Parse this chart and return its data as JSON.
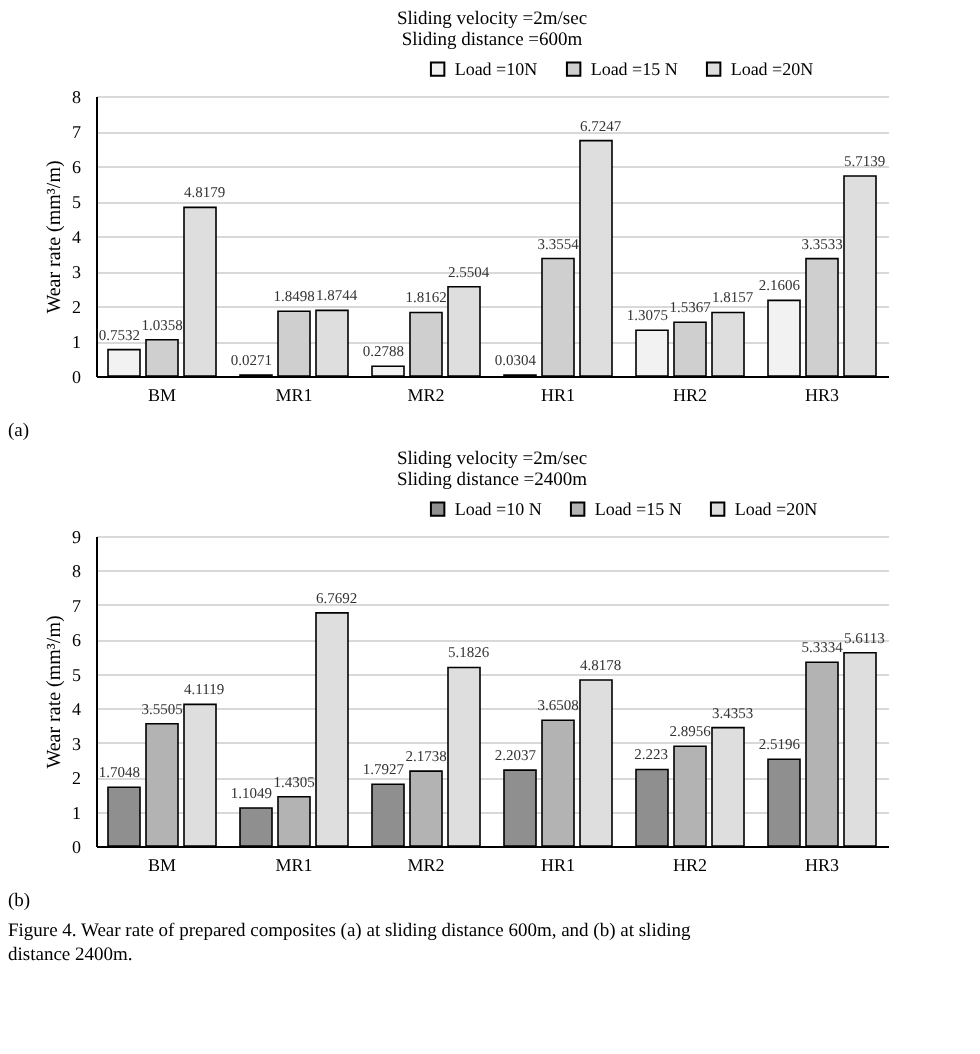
{
  "chart_data": [
    {
      "type": "bar",
      "title": "Sliding velocity =2m/sec",
      "subtitle": "Sliding distance =600m",
      "ylabel": "Wear rate (mm³/m)",
      "categories": [
        "BM",
        "MR1",
        "MR2",
        "HR1",
        "HR2",
        "HR3"
      ],
      "series": [
        {
          "name": "Load =10N",
          "color": "#f2f2f2",
          "values": [
            0.7532,
            0.0271,
            0.2788,
            0.0304,
            1.3075,
            2.1606
          ]
        },
        {
          "name": "Load =15 N",
          "color": "#cfcfcf",
          "values": [
            1.0358,
            1.8498,
            1.8162,
            3.3554,
            1.5367,
            3.3533
          ]
        },
        {
          "name": "Load =20N",
          "color": "#dedede",
          "values": [
            4.8179,
            1.8744,
            2.5504,
            6.7247,
            1.8157,
            5.7139
          ]
        }
      ],
      "ylim": [
        0,
        8
      ],
      "yticks": [
        0,
        1,
        2,
        3,
        4,
        5,
        6,
        7,
        8
      ],
      "grid": "y",
      "legend": "top",
      "data_labels": true,
      "annotations": [
        "(a)"
      ]
    },
    {
      "type": "bar",
      "title": "Sliding velocity =2m/sec",
      "subtitle": "Sliding distance =2400m",
      "ylabel": "Wear rate (mm³/m)",
      "categories": [
        "BM",
        "MR1",
        "MR2",
        "HR1",
        "HR2",
        "HR3"
      ],
      "series": [
        {
          "name": "Load =10 N",
          "color": "#8f8f8f",
          "values": [
            1.7048,
            1.1049,
            1.7927,
            2.2037,
            2.223,
            2.5196
          ]
        },
        {
          "name": "Load =15 N",
          "color": "#b3b3b3",
          "values": [
            3.5505,
            1.4305,
            2.1738,
            3.6508,
            2.8956,
            5.3334
          ]
        },
        {
          "name": "Load =20N",
          "color": "#dedede",
          "values": [
            4.1119,
            6.7692,
            5.1826,
            4.8178,
            3.4353,
            5.6113
          ]
        }
      ],
      "ylim": [
        0,
        9
      ],
      "yticks": [
        0,
        1,
        2,
        3,
        4,
        5,
        6,
        7,
        8,
        9
      ],
      "grid": "y",
      "legend": "top",
      "data_labels": true,
      "annotations": [
        "(b)",
        "Figure 4. Wear rate of prepared composites (a) at sliding distance 600m, and (b) at sliding distance 2400m."
      ]
    }
  ]
}
